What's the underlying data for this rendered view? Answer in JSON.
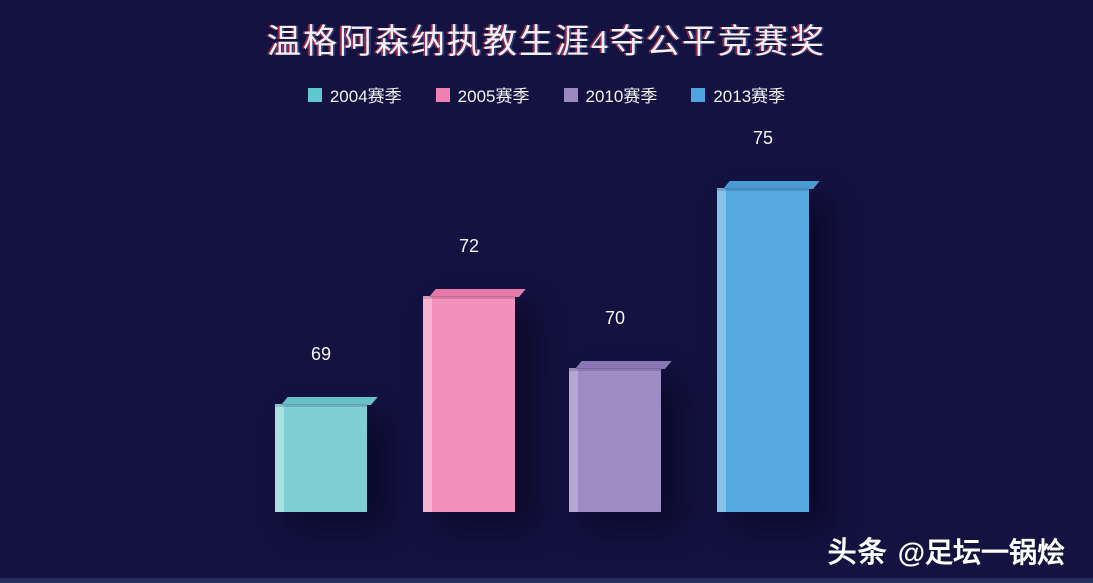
{
  "title": {
    "text": "温格阿森纳执教生涯4夺公平竞赛奖",
    "color": "#f3f1f8"
  },
  "legend": {
    "position": "top",
    "items": [
      {
        "label": "2004赛季",
        "color": "#5fc8ce"
      },
      {
        "label": "2005赛季",
        "color": "#f07fb2"
      },
      {
        "label": "2010赛季",
        "color": "#9a8ac0"
      },
      {
        "label": "2013赛季",
        "color": "#4fa6de"
      }
    ]
  },
  "chart_data": {
    "type": "bar",
    "title": "温格阿森纳执教生涯4夺公平竞赛奖",
    "categories": [
      "2004赛季",
      "2005赛季",
      "2010赛季",
      "2013赛季"
    ],
    "values": [
      69,
      72,
      70,
      75
    ],
    "xlabel": "",
    "ylabel": "",
    "ylim": [
      66,
      78
    ],
    "grid": false,
    "axes_shown": false,
    "data_labels_shown": true,
    "legend_position": "top",
    "style": "3d-bars-on-dark-background",
    "series": [
      {
        "name": "2004赛季",
        "value": 69,
        "face": "#7fd0d4",
        "light": "#abdfe2",
        "bevel": "#68bfc6"
      },
      {
        "name": "2005赛季",
        "value": 72,
        "face": "#f391bc",
        "light": "#f8b4cf",
        "bevel": "#e77aa9"
      },
      {
        "name": "2010赛季",
        "value": 70,
        "face": "#9e8dc5",
        "light": "#b5a7d3",
        "bevel": "#8a78b5"
      },
      {
        "name": "2013赛季",
        "value": 75,
        "face": "#55a9e0",
        "light": "#85c3ea",
        "bevel": "#4c9ad3"
      }
    ]
  },
  "watermark": {
    "brand": "头条",
    "handle": "@足坛一锅烩"
  },
  "background": {
    "color": "#141240",
    "footer_strip_color": "#25305f"
  }
}
